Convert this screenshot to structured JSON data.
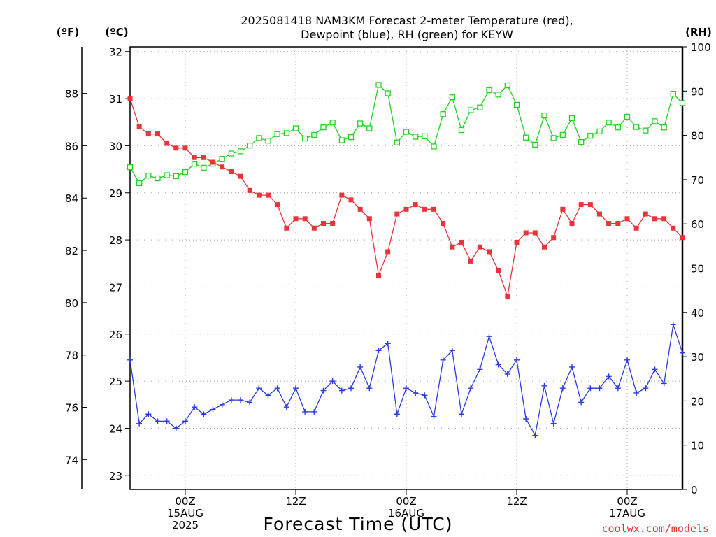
{
  "chart_data": {
    "type": "line",
    "title": [
      "2025081418 NAM3KM Forecast 2-meter Temperature (red),",
      "Dewpoint (blue), RH (green) for KEYW"
    ],
    "xlabel": "Forecast Time (UTC)",
    "credit": "coolwx.com/models",
    "units": {
      "fahrenheit": "(ºF)",
      "celsius": "(ºC)",
      "rh": "(RH)"
    },
    "x_range_hours": [
      -6,
      54
    ],
    "x_ticks": [
      {
        "hour": 0,
        "lines": [
          "00Z",
          "15AUG",
          "2025"
        ]
      },
      {
        "hour": 12,
        "lines": [
          "12Z"
        ]
      },
      {
        "hour": 24,
        "lines": [
          "00Z",
          "16AUG"
        ]
      },
      {
        "hour": 36,
        "lines": [
          "12Z"
        ]
      },
      {
        "hour": 48,
        "lines": [
          "00Z",
          "17AUG"
        ]
      }
    ],
    "y_celsius": {
      "range": [
        22.7,
        32.1
      ],
      "ticks": [
        23,
        24,
        25,
        26,
        27,
        28,
        29,
        30,
        31,
        32
      ]
    },
    "y_fahrenheit": {
      "ticks": [
        74,
        76,
        78,
        80,
        82,
        84,
        86,
        88
      ]
    },
    "y_rh": {
      "range": [
        0,
        100
      ],
      "ticks": [
        0,
        10,
        20,
        30,
        40,
        50,
        60,
        70,
        80,
        90,
        100
      ]
    },
    "x_hours": [
      -6,
      -5,
      -4,
      -3,
      -2,
      -1,
      0,
      1,
      2,
      3,
      4,
      5,
      6,
      7,
      8,
      9,
      10,
      11,
      12,
      13,
      14,
      15,
      16,
      17,
      18,
      19,
      20,
      21,
      22,
      23,
      24,
      25,
      26,
      27,
      28,
      29,
      30,
      31,
      32,
      33,
      34,
      35,
      36,
      37,
      38,
      39,
      40,
      41,
      42,
      43,
      44,
      45,
      46,
      47,
      48,
      49,
      50,
      51,
      52,
      53,
      54
    ],
    "series": [
      {
        "name": "Temperature",
        "axis": "celsius",
        "color": "#e8343a",
        "marker": "filled-square",
        "values": [
          31.0,
          30.4,
          30.25,
          30.25,
          30.05,
          29.95,
          29.95,
          29.75,
          29.75,
          29.65,
          29.55,
          29.45,
          29.35,
          29.05,
          28.95,
          28.95,
          28.75,
          28.25,
          28.45,
          28.45,
          28.25,
          28.35,
          28.35,
          28.95,
          28.85,
          28.65,
          28.45,
          27.25,
          27.75,
          28.55,
          28.65,
          28.75,
          28.65,
          28.65,
          28.35,
          27.85,
          27.95,
          27.55,
          27.85,
          27.75,
          27.35,
          26.8,
          27.95,
          28.15,
          28.15,
          27.85,
          28.05,
          28.65,
          28.35,
          28.75,
          28.75,
          28.55,
          28.35,
          28.35,
          28.45,
          28.25,
          28.55,
          28.45,
          28.45,
          28.25,
          28.05
        ]
      },
      {
        "name": "Dewpoint",
        "axis": "celsius",
        "color": "#2b3be0",
        "marker": "plus",
        "values": [
          25.45,
          24.1,
          24.3,
          24.15,
          24.15,
          24.0,
          24.15,
          24.45,
          24.3,
          24.4,
          24.5,
          24.6,
          24.6,
          24.55,
          24.85,
          24.7,
          24.85,
          24.45,
          24.85,
          24.35,
          24.35,
          24.8,
          25.0,
          24.8,
          24.85,
          25.3,
          24.85,
          25.65,
          25.8,
          24.3,
          24.85,
          24.75,
          24.7,
          24.25,
          25.45,
          25.65,
          24.3,
          24.85,
          25.25,
          25.95,
          25.35,
          25.15,
          25.45,
          24.2,
          23.85,
          24.9,
          24.1,
          24.85,
          25.3,
          24.55,
          24.85,
          24.85,
          25.1,
          24.85,
          25.45,
          24.75,
          24.85,
          25.25,
          24.95,
          26.2,
          25.6
        ]
      },
      {
        "name": "RH",
        "axis": "rh",
        "color": "#22d422",
        "marker": "open-square",
        "values": [
          72.8,
          69.2,
          70.9,
          70.3,
          71.0,
          70.8,
          71.7,
          73.6,
          72.7,
          73.6,
          74.7,
          75.9,
          76.4,
          77.7,
          79.4,
          78.8,
          80.3,
          80.5,
          81.6,
          79.3,
          80.1,
          81.8,
          82.9,
          78.9,
          79.6,
          82.7,
          81.6,
          91.4,
          89.5,
          78.4,
          80.8,
          79.7,
          79.8,
          77.5,
          84.8,
          88.6,
          81.2,
          85.7,
          86.3,
          90.2,
          89.2,
          91.3,
          86.9,
          79.5,
          77.9,
          84.5,
          79.4,
          80.1,
          83.9,
          78.5,
          79.9,
          80.9,
          82.9,
          81.8,
          84.2,
          81.9,
          81.1,
          83.2,
          81.8,
          89.4,
          87.3
        ]
      }
    ]
  }
}
